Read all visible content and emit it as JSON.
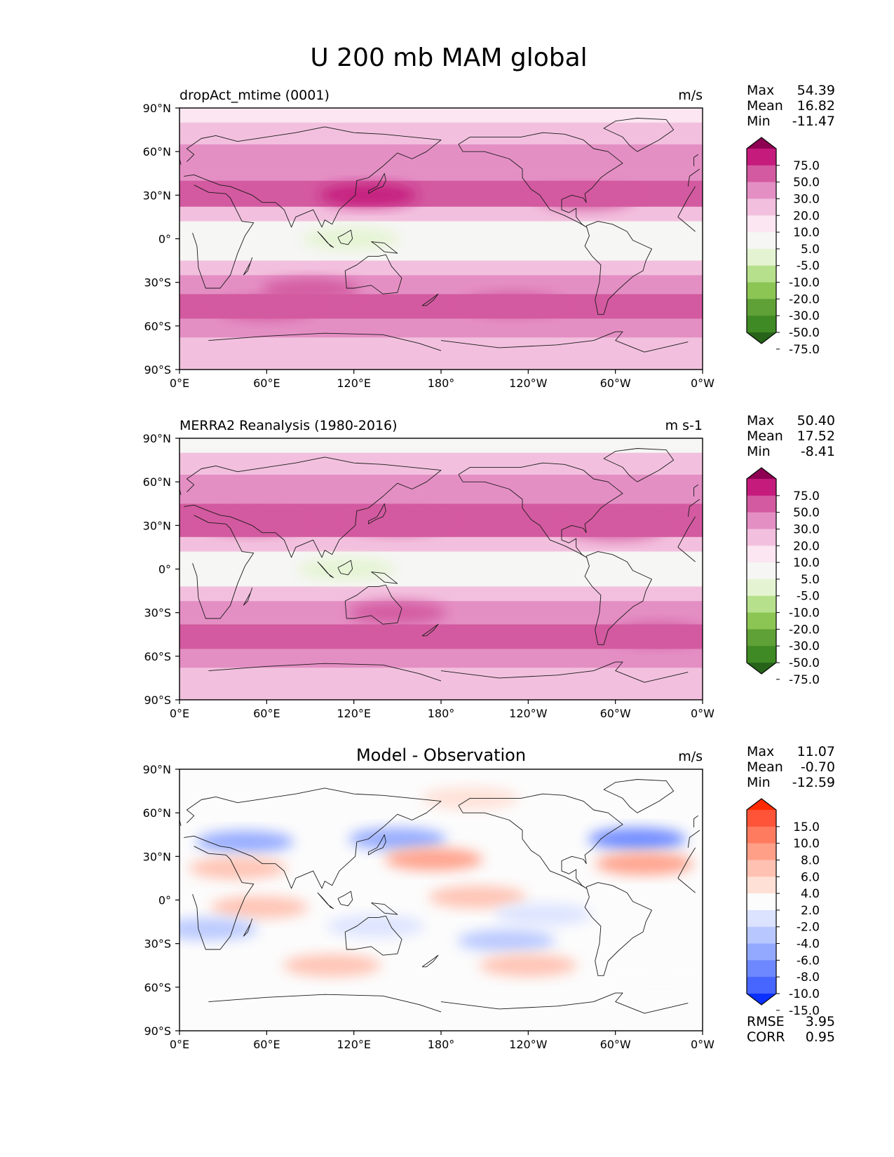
{
  "figure_title": "U 200 mb MAM global",
  "chart_data": [
    {
      "type": "heatmap",
      "panel": "model",
      "title_left": "dropAct_mtime (0001)",
      "title_center": "",
      "units": "m/s",
      "stats": {
        "max_label": "Max",
        "max": "54.39",
        "mean_label": "Mean",
        "mean": "16.82",
        "min_label": "Min",
        "min": "-11.47"
      },
      "x_ticks": [
        "0°E",
        "60°E",
        "120°E",
        "180°",
        "120°W",
        "60°W",
        "0°W"
      ],
      "y_ticks": [
        "90°N",
        "60°N",
        "30°N",
        "0°",
        "30°S",
        "60°S",
        "90°S"
      ],
      "xlim": [
        0,
        360
      ],
      "ylim": [
        -90,
        90
      ],
      "colorbar": {
        "labels": [
          "75.0",
          "50.0",
          "30.0",
          "20.0",
          "10.0",
          "5.0",
          "-5.0",
          "-10.0",
          "-20.0",
          "-30.0",
          "-50.0",
          "-75.0"
        ],
        "colors": [
          "#8e0152",
          "#c51b7d",
          "#d35aa0",
          "#e48fc4",
          "#f2c0de",
          "#fbe6f1",
          "#f6f6f4",
          "#e4f4d2",
          "#b6e08b",
          "#8cc554",
          "#5fa136",
          "#3f8a24",
          "#27641a"
        ]
      },
      "bands": [
        {
          "lat": [
            90,
            80
          ],
          "value": 5
        },
        {
          "lat": [
            80,
            65
          ],
          "value": 10
        },
        {
          "lat": [
            65,
            48
          ],
          "value": 20
        },
        {
          "lat": [
            48,
            40
          ],
          "value": 20
        },
        {
          "lat": [
            40,
            22
          ],
          "value": 30
        },
        {
          "lat": [
            22,
            12
          ],
          "value": 10
        },
        {
          "lat": [
            12,
            -15
          ],
          "value": 0
        },
        {
          "lat": [
            -15,
            -25
          ],
          "value": 10
        },
        {
          "lat": [
            -25,
            -38
          ],
          "value": 20
        },
        {
          "lat": [
            -38,
            -55
          ],
          "value": 30
        },
        {
          "lat": [
            -55,
            -68
          ],
          "value": 20
        },
        {
          "lat": [
            -68,
            -90
          ],
          "value": 10
        }
      ],
      "blobs": [
        {
          "lon": 130,
          "lat": 30,
          "value": 50
        },
        {
          "lon": 280,
          "lat": 28,
          "value": 30
        },
        {
          "lon": 118,
          "lat": 0,
          "value": -10
        },
        {
          "lon": 90,
          "lat": -35,
          "value": 30
        },
        {
          "lon": 230,
          "lat": -45,
          "value": 30
        },
        {
          "lon": 60,
          "lat": -48,
          "value": 30
        }
      ]
    },
    {
      "type": "heatmap",
      "panel": "observation",
      "title_left": "MERRA2 Reanalysis (1980-2016)",
      "title_center": "",
      "units": "m s-1",
      "stats": {
        "max_label": "Max",
        "max": "50.40",
        "mean_label": "Mean",
        "mean": "17.52",
        "min_label": "Min",
        "min": "-8.41"
      },
      "x_ticks": [
        "0°E",
        "60°E",
        "120°E",
        "180°",
        "120°W",
        "60°W",
        "0°W"
      ],
      "y_ticks": [
        "90°N",
        "60°N",
        "30°N",
        "0°",
        "30°S",
        "60°S",
        "90°S"
      ],
      "xlim": [
        0,
        360
      ],
      "ylim": [
        -90,
        90
      ],
      "colorbar": {
        "labels": [
          "75.0",
          "50.0",
          "30.0",
          "20.0",
          "10.0",
          "5.0",
          "-5.0",
          "-10.0",
          "-20.0",
          "-30.0",
          "-50.0",
          "-75.0"
        ],
        "colors": [
          "#8e0152",
          "#c51b7d",
          "#d35aa0",
          "#e48fc4",
          "#f2c0de",
          "#fbe6f1",
          "#f6f6f4",
          "#e4f4d2",
          "#b6e08b",
          "#8cc554",
          "#5fa136",
          "#3f8a24",
          "#27641a"
        ]
      },
      "bands": [
        {
          "lat": [
            90,
            80
          ],
          "value": 0
        },
        {
          "lat": [
            80,
            65
          ],
          "value": 10
        },
        {
          "lat": [
            65,
            45
          ],
          "value": 20
        },
        {
          "lat": [
            45,
            22
          ],
          "value": 30
        },
        {
          "lat": [
            22,
            12
          ],
          "value": 10
        },
        {
          "lat": [
            12,
            -12
          ],
          "value": 0
        },
        {
          "lat": [
            -12,
            -22
          ],
          "value": 10
        },
        {
          "lat": [
            -22,
            -38
          ],
          "value": 20
        },
        {
          "lat": [
            -38,
            -55
          ],
          "value": 30
        },
        {
          "lat": [
            -55,
            -68
          ],
          "value": 20
        },
        {
          "lat": [
            -68,
            -90
          ],
          "value": 10
        }
      ],
      "blobs": [
        {
          "lon": 50,
          "lat": 32,
          "value": 30
        },
        {
          "lon": 150,
          "lat": 32,
          "value": 30
        },
        {
          "lon": 300,
          "lat": 28,
          "value": 30
        },
        {
          "lon": 115,
          "lat": 0,
          "value": -10
        },
        {
          "lon": 150,
          "lat": -30,
          "value": 30
        },
        {
          "lon": 330,
          "lat": -45,
          "value": 30
        }
      ]
    },
    {
      "type": "heatmap",
      "panel": "difference",
      "title_left": "",
      "title_center": "Model - Observation",
      "units": "m/s",
      "stats": {
        "max_label": "Max",
        "max": "11.07",
        "mean_label": "Mean",
        "mean": "-0.70",
        "min_label": "Min",
        "min": "-12.59"
      },
      "extra_stats": {
        "rmse_label": "RMSE",
        "rmse": "3.95",
        "corr_label": "CORR",
        "corr": "0.95"
      },
      "x_ticks": [
        "0°E",
        "60°E",
        "120°E",
        "180°",
        "120°W",
        "60°W",
        "0°W"
      ],
      "y_ticks": [
        "90°N",
        "60°N",
        "30°N",
        "0°",
        "30°S",
        "60°S",
        "90°S"
      ],
      "xlim": [
        0,
        360
      ],
      "ylim": [
        -90,
        90
      ],
      "colorbar": {
        "labels": [
          "15.0",
          "10.0",
          "8.0",
          "6.0",
          "4.0",
          "2.0",
          "-2.0",
          "-4.0",
          "-6.0",
          "-8.0",
          "-10.0",
          "-15.0"
        ],
        "colors": [
          "#ff2a00",
          "#ff5437",
          "#ff7b60",
          "#ff9f88",
          "#ffc1b1",
          "#ffe0d6",
          "#fcfcfc",
          "#dbe3ff",
          "#b8c7ff",
          "#93a9ff",
          "#6d88ff",
          "#4765ff",
          "#0a31ff"
        ]
      },
      "bands": [],
      "blobs": [
        {
          "lon": 45,
          "lat": 40,
          "value": -8
        },
        {
          "lon": 150,
          "lat": 42,
          "value": -8
        },
        {
          "lon": 315,
          "lat": 42,
          "value": -10
        },
        {
          "lon": 175,
          "lat": 28,
          "value": 6
        },
        {
          "lon": 320,
          "lat": 25,
          "value": 6
        },
        {
          "lon": 40,
          "lat": 22,
          "value": 4
        },
        {
          "lon": 205,
          "lat": 2,
          "value": 4
        },
        {
          "lon": 55,
          "lat": -5,
          "value": 4
        },
        {
          "lon": 250,
          "lat": -10,
          "value": -4
        },
        {
          "lon": 20,
          "lat": -20,
          "value": -6
        },
        {
          "lon": 225,
          "lat": -28,
          "value": -6
        },
        {
          "lon": 135,
          "lat": -18,
          "value": -4
        },
        {
          "lon": 105,
          "lat": -45,
          "value": 4
        },
        {
          "lon": 240,
          "lat": -45,
          "value": 4
        },
        {
          "lon": 200,
          "lat": 70,
          "value": 2
        },
        {
          "lon": 330,
          "lat": -60,
          "value": -2
        }
      ]
    }
  ]
}
